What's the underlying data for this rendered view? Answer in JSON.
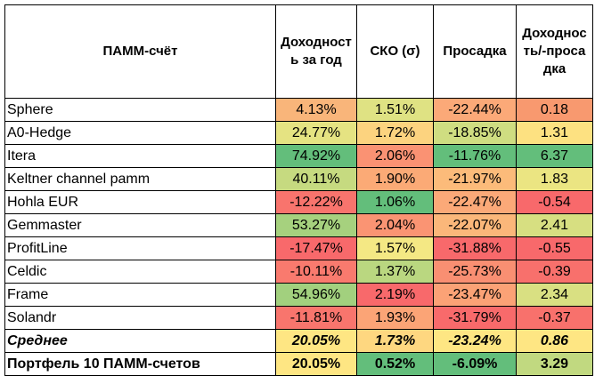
{
  "headers": [
    "ПАММ-счёт",
    "Доходность за год",
    "СКО (σ)",
    "Просадка",
    "Доходность/-просадка"
  ],
  "rows": [
    {
      "name": "Sphere",
      "values": [
        "4.13%",
        "1.51%",
        "-22.44%",
        "0.18"
      ],
      "colors": [
        "#f9b57a",
        "#dfe283",
        "#fba978",
        "#f8996f"
      ]
    },
    {
      "name": "A0-Hedge",
      "values": [
        "24.77%",
        "1.72%",
        "-18.85%",
        "1.31"
      ],
      "colors": [
        "#e5e382",
        "#fcd37f",
        "#cfdd81",
        "#fde181"
      ]
    },
    {
      "name": "Itera",
      "values": [
        "74.92%",
        "2.06%",
        "-11.76%",
        "6.37"
      ],
      "colors": [
        "#63be7b",
        "#fa9273",
        "#63be7b",
        "#63be7b"
      ]
    },
    {
      "name": "Keltner channel pamm",
      "values": [
        "40.11%",
        "1.90%",
        "-21.97%",
        "1.83"
      ],
      "colors": [
        "#c6da80",
        "#fbaa76",
        "#fcbb7a",
        "#ebe582"
      ]
    },
    {
      "name": "Hohla EUR",
      "values": [
        "-12.22%",
        "1.06%",
        "-22.47%",
        "-0.54"
      ],
      "colors": [
        "#f8746d",
        "#63be7b",
        "#fba978",
        "#f8696b"
      ]
    },
    {
      "name": "Gemmaster",
      "values": [
        "53.27%",
        "2.04%",
        "-22.07%",
        "2.41"
      ],
      "colors": [
        "#a6d17e",
        "#fa9473",
        "#fbb77a",
        "#d7df81"
      ]
    },
    {
      "name": "ProfitLine",
      "values": [
        "-17.47%",
        "1.57%",
        "-31.88%",
        "-0.55"
      ],
      "colors": [
        "#f8696b",
        "#f4e884",
        "#f8696b",
        "#f8696b"
      ]
    },
    {
      "name": "Celdic",
      "values": [
        "-10.11%",
        "1.37%",
        "-25.73%",
        "-0.39"
      ],
      "colors": [
        "#f97a6e",
        "#bad780",
        "#f98f72",
        "#f8706c"
      ]
    },
    {
      "name": "Frame",
      "values": [
        "54.96%",
        "2.19%",
        "-23.47%",
        "2.34"
      ],
      "colors": [
        "#a2d07e",
        "#f8696b",
        "#fba276",
        "#d9e082"
      ]
    },
    {
      "name": "Solandr",
      "values": [
        "-11.81%",
        "1.93%",
        "-31.79%",
        "-0.37"
      ],
      "colors": [
        "#f8756d",
        "#fba476",
        "#f86a6b",
        "#f8716c"
      ]
    }
  ],
  "average": {
    "name": "Среднее",
    "values": [
      "20.05%",
      "1.73%",
      "-23.24%",
      "0.86"
    ],
    "colors": [
      "#fee683",
      "#fed780",
      "#fee683",
      "#fee683"
    ]
  },
  "portfolio": {
    "name": "Портфель 10 ПАММ-счетов",
    "values": [
      "20.05%",
      "0.52%",
      "-6.09%",
      "3.29"
    ],
    "colors": [
      "#fee683",
      "#63be7b",
      "#63be7b",
      "#c1d980"
    ]
  }
}
